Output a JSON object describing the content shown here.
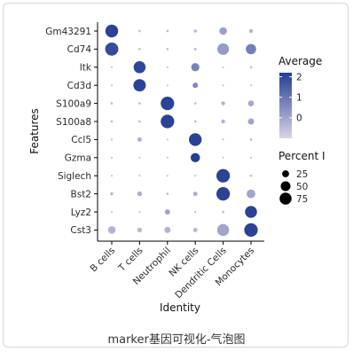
{
  "caption": "marker基因可视化-气泡图",
  "chart_data": {
    "type": "dotplot",
    "xlabel": "Identity",
    "ylabel": "Features",
    "categories_x": [
      "B cells",
      "T cells",
      "Neutrophil",
      "NK cells",
      "Dendritic Cells",
      "Monocytes"
    ],
    "features": [
      "Gm43291",
      "Cd74",
      "Itk",
      "Cd3d",
      "S100a9",
      "S100a8",
      "Ccl5",
      "Gzma",
      "Siglech",
      "Bst2",
      "Lyz2",
      "Cst3"
    ],
    "colors": {
      "low": "#d9d4e7",
      "high": "#253d92"
    },
    "legend": {
      "color_title": "Average",
      "color_ticks": [
        2,
        1,
        0
      ],
      "color_range": [
        -1,
        2.2
      ],
      "size_title": "Percent I",
      "size_ticks": [
        25,
        50,
        75
      ]
    },
    "points": [
      {
        "feature": "Gm43291",
        "cell": "B cells",
        "pct": 85,
        "avg": 2.1
      },
      {
        "feature": "Gm43291",
        "cell": "T cells",
        "pct": 3,
        "avg": -0.5
      },
      {
        "feature": "Gm43291",
        "cell": "Neutrophil",
        "pct": 3,
        "avg": -0.5
      },
      {
        "feature": "Gm43291",
        "cell": "NK cells",
        "pct": 5,
        "avg": -0.4
      },
      {
        "feature": "Gm43291",
        "cell": "Dendritic Cells",
        "pct": 30,
        "avg": 0.1
      },
      {
        "feature": "Gm43291",
        "cell": "Monocytes",
        "pct": 8,
        "avg": -0.3
      },
      {
        "feature": "Cd74",
        "cell": "B cells",
        "pct": 90,
        "avg": 1.9
      },
      {
        "feature": "Cd74",
        "cell": "T cells",
        "pct": 3,
        "avg": -0.6
      },
      {
        "feature": "Cd74",
        "cell": "Neutrophil",
        "pct": 3,
        "avg": -0.6
      },
      {
        "feature": "Cd74",
        "cell": "NK cells",
        "pct": 4,
        "avg": -0.5
      },
      {
        "feature": "Cd74",
        "cell": "Dendritic Cells",
        "pct": 70,
        "avg": 0.2
      },
      {
        "feature": "Cd74",
        "cell": "Monocytes",
        "pct": 55,
        "avg": 0.8
      },
      {
        "feature": "Itk",
        "cell": "B cells",
        "pct": 2,
        "avg": -0.6
      },
      {
        "feature": "Itk",
        "cell": "T cells",
        "pct": 75,
        "avg": 2.0
      },
      {
        "feature": "Itk",
        "cell": "Neutrophil",
        "pct": 2,
        "avg": -0.6
      },
      {
        "feature": "Itk",
        "cell": "NK cells",
        "pct": 35,
        "avg": 0.7
      },
      {
        "feature": "Itk",
        "cell": "Dendritic Cells",
        "pct": 2,
        "avg": -0.6
      },
      {
        "feature": "Itk",
        "cell": "Monocytes",
        "pct": 3,
        "avg": -0.5
      },
      {
        "feature": "Cd3d",
        "cell": "B cells",
        "pct": 2,
        "avg": -0.6
      },
      {
        "feature": "Cd3d",
        "cell": "T cells",
        "pct": 80,
        "avg": 2.1
      },
      {
        "feature": "Cd3d",
        "cell": "Neutrophil",
        "pct": 2,
        "avg": -0.6
      },
      {
        "feature": "Cd3d",
        "cell": "NK cells",
        "pct": 15,
        "avg": 0.6
      },
      {
        "feature": "Cd3d",
        "cell": "Dendritic Cells",
        "pct": 2,
        "avg": -0.6
      },
      {
        "feature": "Cd3d",
        "cell": "Monocytes",
        "pct": 2,
        "avg": -0.6
      },
      {
        "feature": "S100a9",
        "cell": "B cells",
        "pct": 3,
        "avg": -0.5
      },
      {
        "feature": "S100a9",
        "cell": "T cells",
        "pct": 3,
        "avg": -0.5
      },
      {
        "feature": "S100a9",
        "cell": "Neutrophil",
        "pct": 95,
        "avg": 2.1
      },
      {
        "feature": "S100a9",
        "cell": "NK cells",
        "pct": 3,
        "avg": -0.5
      },
      {
        "feature": "S100a9",
        "cell": "Dendritic Cells",
        "pct": 8,
        "avg": -0.3
      },
      {
        "feature": "S100a9",
        "cell": "Monocytes",
        "pct": 18,
        "avg": -0.1
      },
      {
        "feature": "S100a8",
        "cell": "B cells",
        "pct": 3,
        "avg": -0.5
      },
      {
        "feature": "S100a8",
        "cell": "T cells",
        "pct": 3,
        "avg": -0.5
      },
      {
        "feature": "S100a8",
        "cell": "Neutrophil",
        "pct": 95,
        "avg": 2.1
      },
      {
        "feature": "S100a8",
        "cell": "NK cells",
        "pct": 3,
        "avg": -0.5
      },
      {
        "feature": "S100a8",
        "cell": "Dendritic Cells",
        "pct": 8,
        "avg": -0.3
      },
      {
        "feature": "S100a8",
        "cell": "Monocytes",
        "pct": 20,
        "avg": 0.0
      },
      {
        "feature": "Ccl5",
        "cell": "B cells",
        "pct": 2,
        "avg": -0.6
      },
      {
        "feature": "Ccl5",
        "cell": "T cells",
        "pct": 10,
        "avg": -0.2
      },
      {
        "feature": "Ccl5",
        "cell": "Neutrophil",
        "pct": 2,
        "avg": -0.6
      },
      {
        "feature": "Ccl5",
        "cell": "NK cells",
        "pct": 85,
        "avg": 2.1
      },
      {
        "feature": "Ccl5",
        "cell": "Dendritic Cells",
        "pct": 2,
        "avg": -0.6
      },
      {
        "feature": "Ccl5",
        "cell": "Monocytes",
        "pct": 3,
        "avg": -0.5
      },
      {
        "feature": "Gzma",
        "cell": "B cells",
        "pct": 1,
        "avg": -0.6
      },
      {
        "feature": "Gzma",
        "cell": "T cells",
        "pct": 2,
        "avg": -0.6
      },
      {
        "feature": "Gzma",
        "cell": "Neutrophil",
        "pct": 1,
        "avg": -0.6
      },
      {
        "feature": "Gzma",
        "cell": "NK cells",
        "pct": 45,
        "avg": 2.2
      },
      {
        "feature": "Gzma",
        "cell": "Dendritic Cells",
        "pct": 1,
        "avg": -0.6
      },
      {
        "feature": "Gzma",
        "cell": "Monocytes",
        "pct": 1,
        "avg": -0.6
      },
      {
        "feature": "Siglech",
        "cell": "B cells",
        "pct": 2,
        "avg": -0.6
      },
      {
        "feature": "Siglech",
        "cell": "T cells",
        "pct": 2,
        "avg": -0.6
      },
      {
        "feature": "Siglech",
        "cell": "Neutrophil",
        "pct": 2,
        "avg": -0.6
      },
      {
        "feature": "Siglech",
        "cell": "NK cells",
        "pct": 2,
        "avg": -0.6
      },
      {
        "feature": "Siglech",
        "cell": "Dendritic Cells",
        "pct": 95,
        "avg": 2.1
      },
      {
        "feature": "Siglech",
        "cell": "Monocytes",
        "pct": 3,
        "avg": -0.5
      },
      {
        "feature": "Bst2",
        "cell": "B cells",
        "pct": 5,
        "avg": -0.4
      },
      {
        "feature": "Bst2",
        "cell": "T cells",
        "pct": 12,
        "avg": -0.2
      },
      {
        "feature": "Bst2",
        "cell": "Neutrophil",
        "pct": 3,
        "avg": -0.5
      },
      {
        "feature": "Bst2",
        "cell": "NK cells",
        "pct": 10,
        "avg": -0.2
      },
      {
        "feature": "Bst2",
        "cell": "Dendritic Cells",
        "pct": 95,
        "avg": 2.1
      },
      {
        "feature": "Bst2",
        "cell": "Monocytes",
        "pct": 40,
        "avg": 0.0
      },
      {
        "feature": "Lyz2",
        "cell": "B cells",
        "pct": 2,
        "avg": -0.6
      },
      {
        "feature": "Lyz2",
        "cell": "T cells",
        "pct": 2,
        "avg": -0.6
      },
      {
        "feature": "Lyz2",
        "cell": "Neutrophil",
        "pct": 15,
        "avg": 0.0
      },
      {
        "feature": "Lyz2",
        "cell": "NK cells",
        "pct": 2,
        "avg": -0.6
      },
      {
        "feature": "Lyz2",
        "cell": "Dendritic Cells",
        "pct": 3,
        "avg": -0.5
      },
      {
        "feature": "Lyz2",
        "cell": "Monocytes",
        "pct": 75,
        "avg": 2.1
      },
      {
        "feature": "Cst3",
        "cell": "B cells",
        "pct": 30,
        "avg": -0.3
      },
      {
        "feature": "Cst3",
        "cell": "T cells",
        "pct": 12,
        "avg": -0.4
      },
      {
        "feature": "Cst3",
        "cell": "Neutrophil",
        "pct": 20,
        "avg": -0.3
      },
      {
        "feature": "Cst3",
        "cell": "NK cells",
        "pct": 10,
        "avg": -0.4
      },
      {
        "feature": "Cst3",
        "cell": "Dendritic Cells",
        "pct": 75,
        "avg": 0.0
      },
      {
        "feature": "Cst3",
        "cell": "Monocytes",
        "pct": 95,
        "avg": 2.1
      }
    ]
  }
}
